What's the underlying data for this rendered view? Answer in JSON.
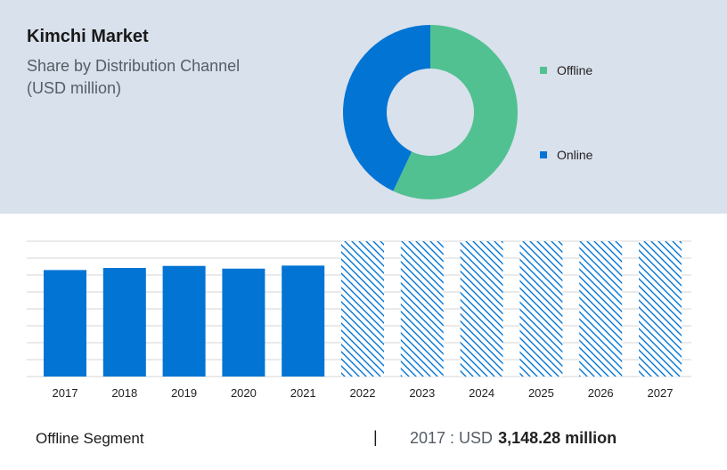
{
  "header": {
    "title": "Kimchi Market",
    "subtitle_line1": "Share by Distribution Channel",
    "subtitle_line2": "(USD million)"
  },
  "colors": {
    "offline": "#52c191",
    "online": "#0274d4",
    "bar": "#0274d4",
    "hatch": "#0274d4",
    "band_bg": "#d9e1ec",
    "grid": "#d6d6d6"
  },
  "chart_data": [
    {
      "type": "pie",
      "variant": "donut",
      "categories": [
        "Offline",
        "Online"
      ],
      "values": [
        57,
        43
      ],
      "legend": [
        "Offline",
        "Online"
      ],
      "legend_position": "right"
    },
    {
      "type": "bar",
      "categories": [
        "2017",
        "2018",
        "2019",
        "2020",
        "2021",
        "2022",
        "2023",
        "2024",
        "2025",
        "2026",
        "2027"
      ],
      "values": [
        3148.28,
        3210,
        3270,
        3190,
        3280,
        null,
        null,
        null,
        null,
        null,
        null
      ],
      "forecast_categories": [
        "2022",
        "2023",
        "2024",
        "2025",
        "2026",
        "2027"
      ],
      "forecast_style": "hatched",
      "grid": true,
      "ylim": [
        0,
        4000
      ]
    }
  ],
  "footer": {
    "segment_label": "Offline Segment",
    "divider": "|",
    "year_prefix": "2017 : USD",
    "value_text": "3,148.28 million"
  }
}
